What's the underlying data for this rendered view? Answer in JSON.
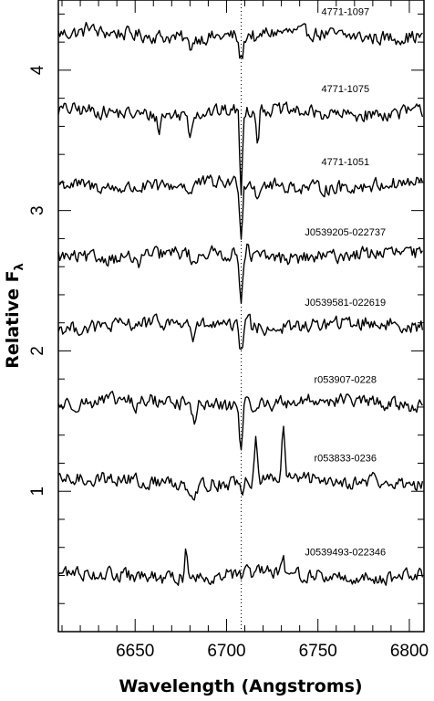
{
  "chart_data": {
    "type": "line",
    "xlabel": "Wavelength (Angstroms)",
    "ylabel": "Relative F",
    "ylabel_subscript": "λ",
    "xlim": [
      6608,
      6808
    ],
    "ylim": [
      0.0,
      4.5
    ],
    "x_ticks": [
      6650,
      6700,
      6750,
      6800
    ],
    "y_ticks": [
      1,
      2,
      3,
      4
    ],
    "reference_line": {
      "x": 6708,
      "style": "dotted"
    },
    "grid": false,
    "series": [
      {
        "name": "4771-1097",
        "baseline": 4.25,
        "features": [
          {
            "x": 6708,
            "depth": -0.18,
            "width": 1.2
          },
          {
            "x": 6680,
            "depth": -0.06,
            "width": 1.5
          },
          {
            "x": 6717,
            "depth": -0.07,
            "width": 1.2
          },
          {
            "x": 6625,
            "depth": 0.05,
            "width": 1.5
          }
        ]
      },
      {
        "name": "4771-1075",
        "baseline": 3.7,
        "features": [
          {
            "x": 6708,
            "depth": -0.62,
            "width": 0.7
          },
          {
            "x": 6717,
            "depth": -0.22,
            "width": 0.7
          },
          {
            "x": 6680,
            "depth": -0.15,
            "width": 0.8
          },
          {
            "x": 6663,
            "depth": -0.12,
            "width": 0.8
          }
        ]
      },
      {
        "name": "4771-1051",
        "baseline": 3.18,
        "features": [
          {
            "x": 6708,
            "depth": -0.38,
            "width": 0.7
          },
          {
            "x": 6717,
            "depth": -0.1,
            "width": 0.8
          },
          {
            "x": 6680,
            "depth": -0.08,
            "width": 1.0
          }
        ]
      },
      {
        "name": "J0539205-022737",
        "baseline": 2.68,
        "features": [
          {
            "x": 6708,
            "depth": -0.3,
            "width": 0.8
          },
          {
            "x": 6682,
            "depth": -0.1,
            "width": 1.2
          },
          {
            "x": 6651,
            "depth": -0.08,
            "width": 1.2
          },
          {
            "x": 6711,
            "depth": 0.07,
            "width": 0.8
          }
        ]
      },
      {
        "name": "J0539581-022619",
        "baseline": 2.18,
        "features": [
          {
            "x": 6708,
            "depth": -0.18,
            "width": 0.8
          },
          {
            "x": 6682,
            "depth": -0.12,
            "width": 1.0
          },
          {
            "x": 6712,
            "depth": 0.1,
            "width": 0.9
          }
        ]
      },
      {
        "name": "r053907-0228",
        "baseline": 1.63,
        "features": [
          {
            "x": 6708,
            "depth": -0.32,
            "width": 0.8
          },
          {
            "x": 6682,
            "depth": -0.12,
            "width": 1.2
          },
          {
            "x": 6650,
            "depth": -0.08,
            "width": 1.2
          }
        ]
      },
      {
        "name": "r053833-0236",
        "baseline": 1.07,
        "features": [
          {
            "x": 6716,
            "depth": 0.28,
            "width": 0.8
          },
          {
            "x": 6731,
            "depth": 0.38,
            "width": 0.8
          },
          {
            "x": 6708,
            "depth": -0.08,
            "width": 1.0
          },
          {
            "x": 6682,
            "depth": -0.08,
            "width": 1.5
          },
          {
            "x": 6655,
            "depth": -0.05,
            "width": 1.5
          },
          {
            "x": 6780,
            "depth": 0.06,
            "width": 1.5
          }
        ]
      },
      {
        "name": "J0539493-022346",
        "baseline": 0.4,
        "features": [
          {
            "x": 6678,
            "depth": 0.22,
            "width": 0.7
          },
          {
            "x": 6731,
            "depth": 0.08,
            "width": 0.8
          },
          {
            "x": 6708,
            "depth": -0.03,
            "width": 1.0
          }
        ]
      }
    ]
  }
}
